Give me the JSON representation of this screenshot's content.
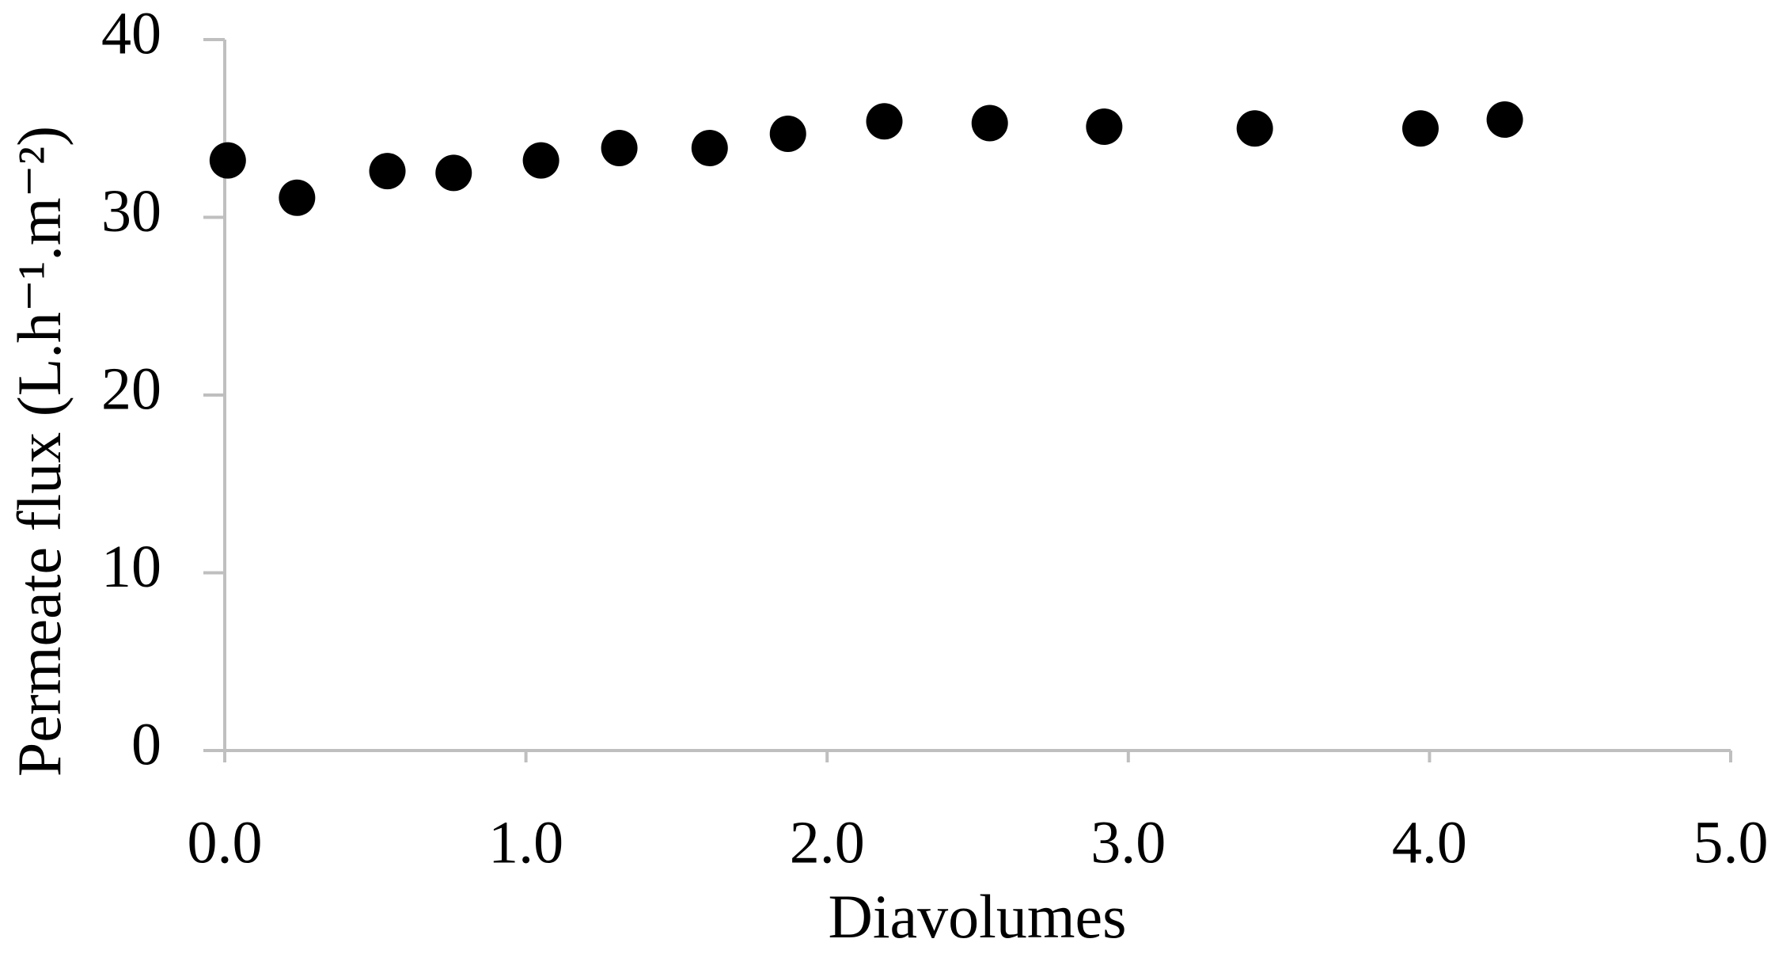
{
  "chart_data": {
    "type": "scatter",
    "xlabel": "Diavolumes",
    "ylabel": "Permeate flux (L.h⁻¹.m⁻²)",
    "x": [
      0.01,
      0.24,
      0.54,
      0.76,
      1.05,
      1.31,
      1.61,
      1.87,
      2.19,
      2.54,
      2.92,
      3.42,
      3.97,
      4.25
    ],
    "values": [
      33.2,
      31.1,
      32.6,
      32.5,
      33.2,
      33.9,
      33.9,
      34.7,
      35.4,
      35.3,
      35.1,
      35.0,
      35.0,
      35.5
    ],
    "color": "#000000",
    "xlim": [
      0,
      5
    ],
    "xticks": [
      {
        "value": 0,
        "label": "0.0"
      },
      {
        "value": 1,
        "label": "1.0"
      },
      {
        "value": 2,
        "label": "2.0"
      },
      {
        "value": 3,
        "label": "3.0"
      },
      {
        "value": 4,
        "label": "4.0"
      },
      {
        "value": 5,
        "label": "5.0"
      }
    ],
    "ylim": [
      0,
      40
    ],
    "yticks": [
      0,
      10,
      20,
      30,
      40
    ],
    "grid": false
  }
}
